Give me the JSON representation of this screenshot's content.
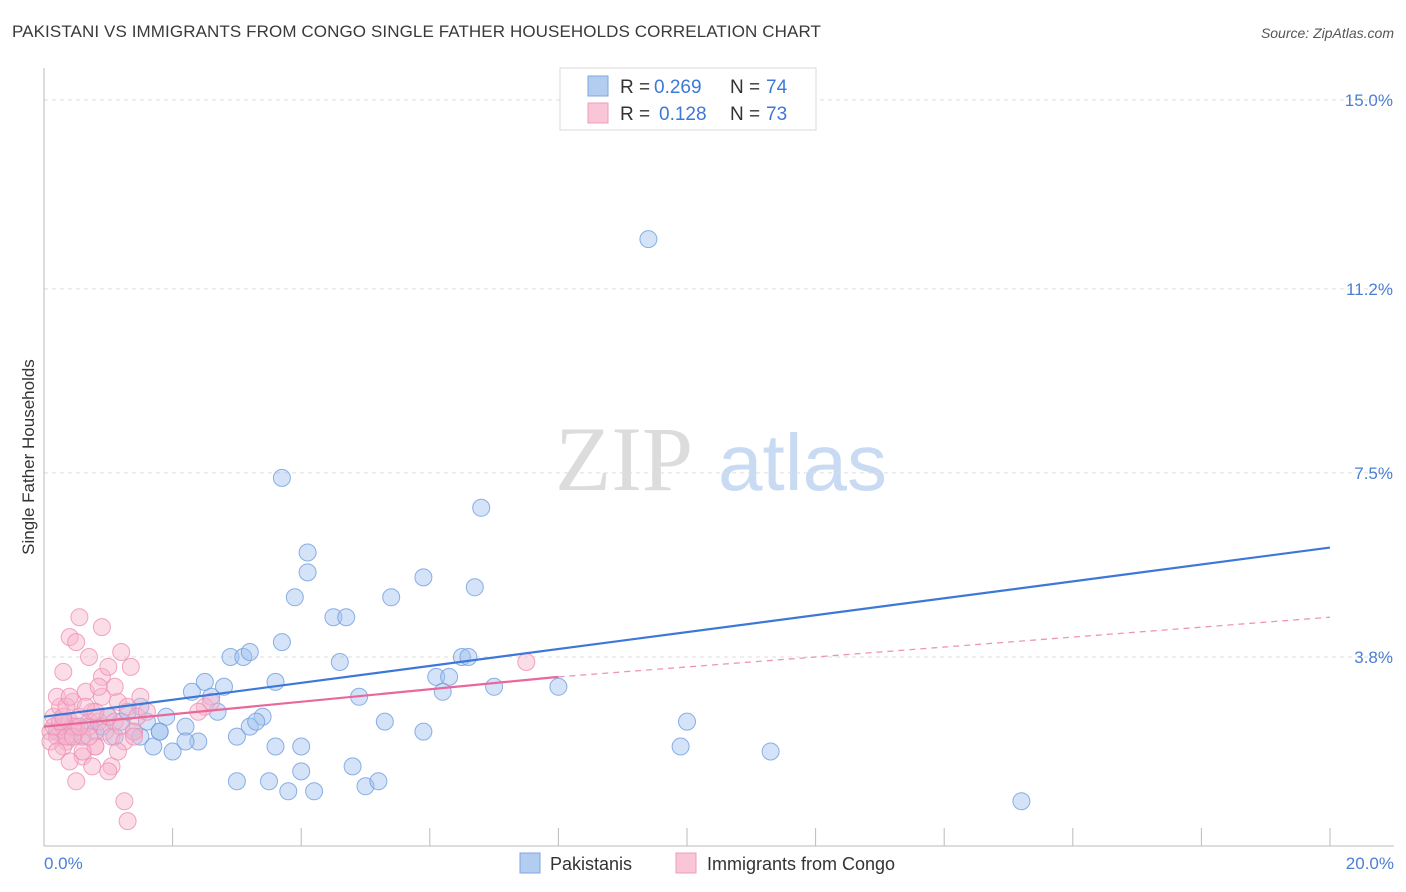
{
  "title": "PAKISTANI VS IMMIGRANTS FROM CONGO SINGLE FATHER HOUSEHOLDS CORRELATION CHART",
  "source": "Source: ZipAtlas.com",
  "watermark": {
    "zip": "ZIP",
    "atlas": "atlas"
  },
  "colors": {
    "blue": "#3d78d8",
    "blue_fill": "#9fc0ee",
    "pink": "#e8689a",
    "pink_fill": "#f6b3cb",
    "grid": "#dddddd",
    "axis": "#bbbbbb"
  },
  "chart_data": {
    "type": "scatter",
    "title": "PAKISTANI VS IMMIGRANTS FROM CONGO SINGLE FATHER HOUSEHOLDS CORRELATION CHART",
    "xlabel": "",
    "ylabel": "Single Father Households",
    "xlim": [
      0,
      20
    ],
    "ylim": [
      0,
      15.5
    ],
    "x_tick_labels": [
      "0.0%",
      "20.0%"
    ],
    "y_ticks": [
      3.8,
      7.5,
      11.2,
      15.0
    ],
    "y_tick_labels": [
      "3.8%",
      "7.5%",
      "11.2%",
      "15.0%"
    ],
    "legend": {
      "entries": [
        {
          "r_label": "R =",
          "r_value": "0.269",
          "n_label": "N =",
          "n_value": "74"
        },
        {
          "r_label": "R =",
          "r_value": "0.128",
          "n_label": "N =",
          "n_value": "73"
        }
      ]
    },
    "series": [
      {
        "name": "Pakistanis",
        "trend": {
          "x": [
            0,
            20
          ],
          "y": [
            2.6,
            6.0
          ],
          "style": "solid"
        },
        "points": [
          [
            0.2,
            2.3
          ],
          [
            0.3,
            2.5
          ],
          [
            0.4,
            2.2
          ],
          [
            0.5,
            2.4
          ],
          [
            0.6,
            2.2
          ],
          [
            0.7,
            2.5
          ],
          [
            0.8,
            2.3
          ],
          [
            0.9,
            2.4
          ],
          [
            1.0,
            2.6
          ],
          [
            1.1,
            2.2
          ],
          [
            1.2,
            2.5
          ],
          [
            1.3,
            2.7
          ],
          [
            1.4,
            2.3
          ],
          [
            1.5,
            2.2
          ],
          [
            1.6,
            2.5
          ],
          [
            1.7,
            2.0
          ],
          [
            1.8,
            2.3
          ],
          [
            1.9,
            2.6
          ],
          [
            2.0,
            1.9
          ],
          [
            1.5,
            2.8
          ],
          [
            2.3,
            3.1
          ],
          [
            2.5,
            3.3
          ],
          [
            2.8,
            3.2
          ],
          [
            2.2,
            2.4
          ],
          [
            2.4,
            2.1
          ],
          [
            2.6,
            3.0
          ],
          [
            2.7,
            2.7
          ],
          [
            3.0,
            2.2
          ],
          [
            3.2,
            2.4
          ],
          [
            3.4,
            2.6
          ],
          [
            2.2,
            2.1
          ],
          [
            1.8,
            2.3
          ],
          [
            2.9,
            3.8
          ],
          [
            3.1,
            3.8
          ],
          [
            3.3,
            2.5
          ],
          [
            3.5,
            1.3
          ],
          [
            3.6,
            2.0
          ],
          [
            3.0,
            1.3
          ],
          [
            3.8,
            1.1
          ],
          [
            4.0,
            1.5
          ],
          [
            4.2,
            1.1
          ],
          [
            4.5,
            4.6
          ],
          [
            4.6,
            3.7
          ],
          [
            4.8,
            1.6
          ],
          [
            5.0,
            1.2
          ],
          [
            5.2,
            1.3
          ],
          [
            5.3,
            2.5
          ],
          [
            5.4,
            5.0
          ],
          [
            5.9,
            2.3
          ],
          [
            3.7,
            4.1
          ],
          [
            3.6,
            3.3
          ],
          [
            3.2,
            3.9
          ],
          [
            4.0,
            2.0
          ],
          [
            4.7,
            4.6
          ],
          [
            3.9,
            5.0
          ],
          [
            3.7,
            7.4
          ],
          [
            4.1,
            5.9
          ],
          [
            4.1,
            5.5
          ],
          [
            4.9,
            3.0
          ],
          [
            6.1,
            3.4
          ],
          [
            5.9,
            5.4
          ],
          [
            6.7,
            5.2
          ],
          [
            6.5,
            3.8
          ],
          [
            6.8,
            6.8
          ],
          [
            6.3,
            3.4
          ],
          [
            6.6,
            3.8
          ],
          [
            7.0,
            3.2
          ],
          [
            8.0,
            3.2
          ],
          [
            9.4,
            12.2
          ],
          [
            9.9,
            2.0
          ],
          [
            10.0,
            2.5
          ],
          [
            11.3,
            1.9
          ],
          [
            15.2,
            0.9
          ],
          [
            6.2,
            3.1
          ]
        ]
      },
      {
        "name": "Immigrants from Congo",
        "trend": {
          "x": [
            0,
            8.0
          ],
          "y": [
            2.4,
            3.4
          ],
          "style": "solid"
        },
        "trend_ext": {
          "x": [
            8.0,
            20
          ],
          "y": [
            3.4,
            4.6
          ],
          "style": "dashed"
        },
        "points": [
          [
            0.1,
            2.3
          ],
          [
            0.15,
            2.6
          ],
          [
            0.2,
            2.2
          ],
          [
            0.25,
            2.8
          ],
          [
            0.3,
            2.4
          ],
          [
            0.35,
            2.1
          ],
          [
            0.4,
            2.5
          ],
          [
            0.45,
            2.9
          ],
          [
            0.5,
            2.3
          ],
          [
            0.55,
            2.6
          ],
          [
            0.6,
            2.2
          ],
          [
            0.65,
            3.1
          ],
          [
            0.7,
            2.4
          ],
          [
            0.75,
            2.7
          ],
          [
            0.8,
            2.0
          ],
          [
            0.85,
            2.5
          ],
          [
            0.9,
            3.4
          ],
          [
            0.95,
            2.3
          ],
          [
            1.0,
            2.6
          ],
          [
            1.05,
            2.2
          ],
          [
            1.1,
            2.5
          ],
          [
            1.15,
            2.9
          ],
          [
            1.2,
            2.4
          ],
          [
            1.25,
            2.1
          ],
          [
            1.3,
            2.8
          ],
          [
            1.35,
            3.6
          ],
          [
            1.4,
            2.3
          ],
          [
            1.45,
            2.6
          ],
          [
            1.5,
            3.0
          ],
          [
            1.6,
            2.7
          ],
          [
            0.2,
            3.0
          ],
          [
            0.3,
            3.5
          ],
          [
            0.4,
            4.2
          ],
          [
            0.5,
            4.1
          ],
          [
            0.55,
            4.6
          ],
          [
            0.6,
            1.8
          ],
          [
            0.7,
            3.8
          ],
          [
            0.75,
            1.6
          ],
          [
            0.8,
            2.0
          ],
          [
            0.9,
            4.4
          ],
          [
            1.0,
            3.6
          ],
          [
            1.05,
            1.6
          ],
          [
            1.1,
            3.2
          ],
          [
            1.15,
            1.9
          ],
          [
            1.2,
            3.9
          ],
          [
            1.25,
            0.9
          ],
          [
            1.3,
            0.5
          ],
          [
            0.5,
            1.3
          ],
          [
            0.6,
            1.9
          ],
          [
            0.4,
            1.7
          ],
          [
            0.7,
            2.2
          ],
          [
            0.8,
            2.7
          ],
          [
            0.9,
            3.0
          ],
          [
            1.0,
            1.5
          ],
          [
            0.3,
            2.0
          ],
          [
            0.35,
            2.2
          ],
          [
            0.45,
            2.4
          ],
          [
            0.65,
            2.8
          ],
          [
            0.85,
            3.2
          ],
          [
            1.4,
            2.2
          ],
          [
            2.5,
            2.8
          ],
          [
            2.6,
            2.9
          ],
          [
            2.4,
            2.7
          ],
          [
            7.5,
            3.7
          ],
          [
            0.1,
            2.1
          ],
          [
            0.2,
            1.9
          ],
          [
            0.15,
            2.4
          ],
          [
            0.25,
            2.5
          ],
          [
            0.3,
            2.6
          ],
          [
            0.35,
            2.8
          ],
          [
            0.4,
            3.0
          ],
          [
            0.45,
            2.2
          ],
          [
            0.55,
            2.4
          ]
        ]
      }
    ]
  },
  "bottom_legend": [
    {
      "label": "Pakistanis"
    },
    {
      "label": "Immigrants from Congo"
    }
  ]
}
